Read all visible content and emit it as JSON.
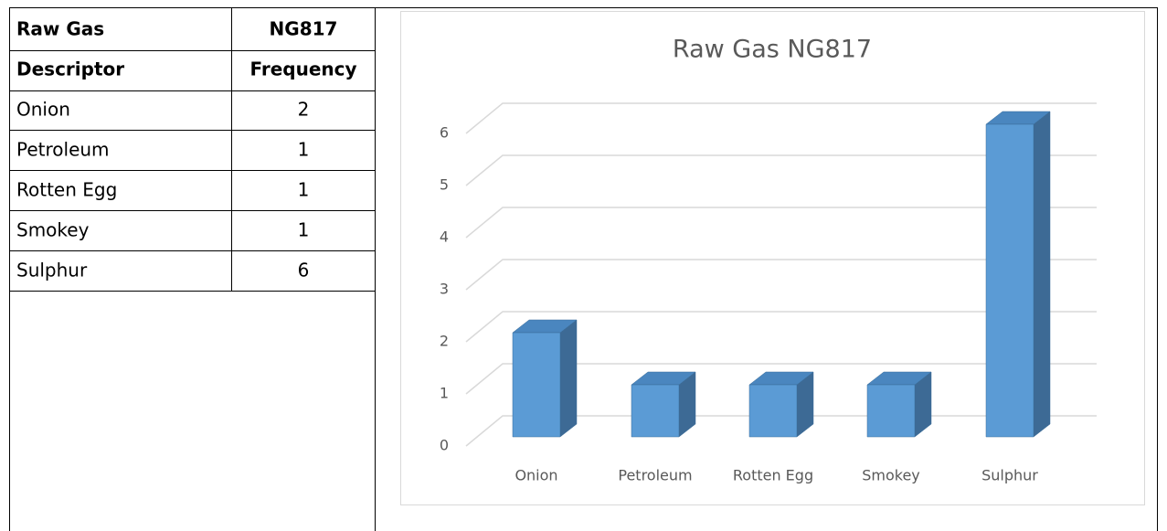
{
  "table": {
    "header": [
      [
        "Raw Gas",
        "NG817"
      ],
      [
        "Descriptor",
        "Frequency"
      ]
    ],
    "rows": [
      [
        "Onion",
        2
      ],
      [
        "Petroleum",
        1
      ],
      [
        "Rotten Egg",
        1
      ],
      [
        "Smokey",
        1
      ],
      [
        "Sulphur",
        6
      ]
    ]
  },
  "chart_data": {
    "type": "bar3d",
    "title": "Raw Gas NG817",
    "categories": [
      "Onion",
      "Petroleum",
      "Rotten Egg",
      "Smokey",
      "Sulphur"
    ],
    "values": [
      2,
      1,
      1,
      1,
      6
    ],
    "color": "#5b9bd5",
    "ylim": [
      0,
      6
    ],
    "yticks": [
      0,
      1,
      2,
      3,
      4,
      5,
      6
    ],
    "grid": true
  }
}
